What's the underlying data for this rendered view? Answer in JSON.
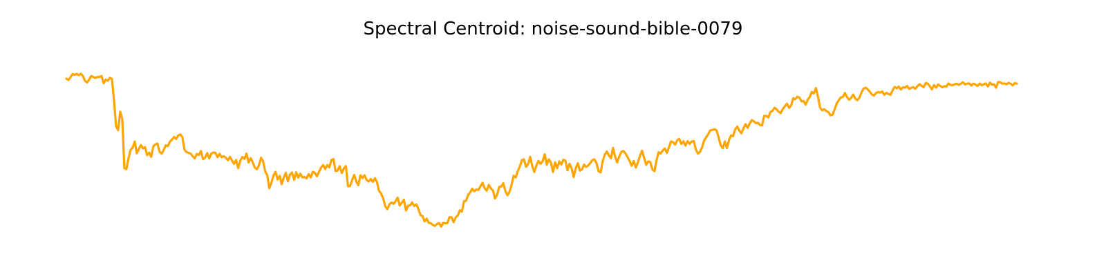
{
  "chart_data": {
    "type": "line",
    "title": "Spectral Centroid: noise-sound-bible-0079",
    "xlabel": "",
    "ylabel": "",
    "axes_visible": false,
    "grid": false,
    "legend": "none",
    "line_color": "#ffa500",
    "ylim": [
      0,
      1
    ],
    "series": [
      {
        "values": [
          0.855,
          0.848,
          0.862,
          0.878,
          0.874,
          0.879,
          0.872,
          0.88,
          0.868,
          0.843,
          0.835,
          0.85,
          0.868,
          0.863,
          0.858,
          0.864,
          0.863,
          0.868,
          0.831,
          0.85,
          0.844,
          0.859,
          0.854,
          0.745,
          0.611,
          0.59,
          0.685,
          0.647,
          0.394,
          0.39,
          0.445,
          0.489,
          0.5,
          0.532,
          0.471,
          0.493,
          0.513,
          0.496,
          0.503,
          0.461,
          0.474,
          0.453,
          0.507,
          0.517,
          0.521,
          0.479,
          0.469,
          0.488,
          0.512,
          0.508,
          0.53,
          0.542,
          0.555,
          0.545,
          0.562,
          0.568,
          0.555,
          0.49,
          0.478,
          0.473,
          0.47,
          0.456,
          0.445,
          0.468,
          0.462,
          0.483,
          0.441,
          0.448,
          0.472,
          0.445,
          0.469,
          0.476,
          0.473,
          0.451,
          0.468,
          0.451,
          0.456,
          0.448,
          0.435,
          0.453,
          0.433,
          0.417,
          0.437,
          0.395,
          0.433,
          0.452,
          0.443,
          0.469,
          0.424,
          0.446,
          0.425,
          0.398,
          0.389,
          0.41,
          0.448,
          0.431,
          0.378,
          0.358,
          0.292,
          0.32,
          0.357,
          0.376,
          0.336,
          0.355,
          0.312,
          0.346,
          0.371,
          0.327,
          0.362,
          0.372,
          0.335,
          0.373,
          0.346,
          0.366,
          0.347,
          0.349,
          0.343,
          0.364,
          0.347,
          0.376,
          0.371,
          0.353,
          0.376,
          0.398,
          0.411,
          0.39,
          0.411,
          0.399,
          0.436,
          0.441,
          0.38,
          0.382,
          0.405,
          0.369,
          0.393,
          0.405,
          0.302,
          0.302,
          0.333,
          0.36,
          0.326,
          0.307,
          0.358,
          0.344,
          0.358,
          0.334,
          0.326,
          0.339,
          0.324,
          0.343,
          0.324,
          0.278,
          0.264,
          0.24,
          0.199,
          0.184,
          0.209,
          0.218,
          0.211,
          0.226,
          0.243,
          0.203,
          0.217,
          0.233,
          0.177,
          0.201,
          0.204,
          0.218,
          0.2,
          0.208,
          0.185,
          0.154,
          0.148,
          0.121,
          0.135,
          0.114,
          0.112,
          0.103,
          0.098,
          0.108,
          0.112,
          0.094,
          0.114,
          0.111,
          0.112,
          0.143,
          0.143,
          0.117,
          0.142,
          0.151,
          0.178,
          0.171,
          0.224,
          0.227,
          0.257,
          0.27,
          0.289,
          0.276,
          0.285,
          0.283,
          0.301,
          0.319,
          0.292,
          0.279,
          0.309,
          0.29,
          0.28,
          0.239,
          0.258,
          0.298,
          0.3,
          0.317,
          0.277,
          0.255,
          0.274,
          0.309,
          0.356,
          0.347,
          0.38,
          0.404,
          0.436,
          0.44,
          0.402,
          0.416,
          0.453,
          0.405,
          0.375,
          0.41,
          0.432,
          0.417,
          0.43,
          0.466,
          0.412,
          0.44,
          0.423,
          0.375,
          0.425,
          0.394,
          0.429,
          0.413,
          0.438,
          0.434,
          0.384,
          0.417,
          0.394,
          0.349,
          0.394,
          0.42,
          0.382,
          0.388,
          0.413,
          0.401,
          0.408,
          0.421,
          0.436,
          0.44,
          0.421,
          0.379,
          0.373,
          0.43,
          0.464,
          0.48,
          0.46,
          0.446,
          0.499,
          0.455,
          0.424,
          0.454,
          0.478,
          0.483,
          0.471,
          0.451,
          0.432,
          0.407,
          0.431,
          0.398,
          0.424,
          0.457,
          0.484,
          0.448,
          0.412,
          0.429,
          0.426,
          0.388,
          0.379,
          0.436,
          0.477,
          0.47,
          0.485,
          0.496,
          0.473,
          0.501,
          0.532,
          0.528,
          0.516,
          0.538,
          0.545,
          0.519,
          0.533,
          0.511,
          0.534,
          0.519,
          0.532,
          0.534,
          0.49,
          0.469,
          0.479,
          0.502,
          0.538,
          0.554,
          0.57,
          0.589,
          0.591,
          0.595,
          0.589,
          0.552,
          0.512,
          0.497,
          0.532,
          0.498,
          0.539,
          0.563,
          0.56,
          0.595,
          0.608,
          0.587,
          0.574,
          0.6,
          0.621,
          0.602,
          0.625,
          0.641,
          0.635,
          0.626,
          0.628,
          0.616,
          0.615,
          0.664,
          0.663,
          0.655,
          0.683,
          0.689,
          0.705,
          0.697,
          0.684,
          0.678,
          0.699,
          0.713,
          0.726,
          0.705,
          0.717,
          0.754,
          0.749,
          0.762,
          0.757,
          0.738,
          0.74,
          0.721,
          0.745,
          0.761,
          0.786,
          0.779,
          0.806,
          0.76,
          0.705,
          0.692,
          0.698,
          0.688,
          0.683,
          0.666,
          0.67,
          0.696,
          0.727,
          0.743,
          0.758,
          0.761,
          0.781,
          0.76,
          0.746,
          0.756,
          0.773,
          0.752,
          0.744,
          0.757,
          0.784,
          0.804,
          0.808,
          0.8,
          0.788,
          0.773,
          0.768,
          0.781,
          0.786,
          0.783,
          0.789,
          0.772,
          0.782,
          0.775,
          0.772,
          0.795,
          0.812,
          0.805,
          0.814,
          0.799,
          0.81,
          0.808,
          0.817,
          0.802,
          0.807,
          0.811,
          0.803,
          0.816,
          0.826,
          0.818,
          0.811,
          0.832,
          0.829,
          0.815,
          0.8,
          0.822,
          0.808,
          0.825,
          0.817,
          0.81,
          0.816,
          0.814,
          0.83,
          0.822,
          0.821,
          0.826,
          0.829,
          0.822,
          0.829,
          0.836,
          0.825,
          0.829,
          0.83,
          0.819,
          0.829,
          0.824,
          0.817,
          0.829,
          0.821,
          0.825,
          0.83,
          0.815,
          0.834,
          0.823,
          0.826,
          0.808,
          0.838,
          0.836,
          0.829,
          0.83,
          0.826,
          0.833,
          0.829,
          0.82,
          0.832,
          0.829
        ]
      }
    ]
  }
}
